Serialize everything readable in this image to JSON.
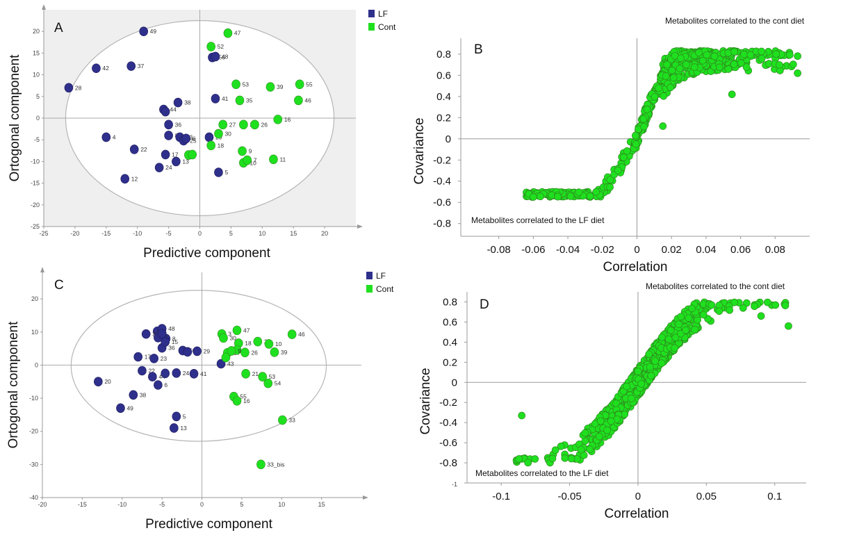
{
  "colors": {
    "lf": "#2f2f8c",
    "cont": "#1fe01f",
    "cont_stroke": "#2f8a1f",
    "lf_stroke": "#1c1c5a",
    "grid": "#c7c7c7",
    "plot_bg_a": "#efefef"
  },
  "chart_data": [
    {
      "panel": "A",
      "type": "scatter",
      "xlabel": "Predictive component",
      "ylabel": "Ortogonal component",
      "xlim": [
        -25,
        25
      ],
      "ylim": [
        -25,
        25
      ],
      "xticks": [
        -25,
        -20,
        -15,
        -10,
        -5,
        0,
        5,
        10,
        15,
        20
      ],
      "yticks": [
        20,
        15,
        10,
        5,
        0,
        -5,
        -10,
        -15,
        -20,
        -25
      ],
      "ellipse": {
        "cx": 0,
        "cy": 0,
        "rx": 21.5,
        "ry": 22.5
      },
      "legend": [
        {
          "name": "LF",
          "color": "#2f2f8c"
        },
        {
          "name": "Cont",
          "color": "#1fe01f"
        }
      ],
      "series": [
        {
          "name": "LF",
          "points": [
            {
              "label": "49",
              "x": -9,
              "y": 20
            },
            {
              "label": "42",
              "x": -16.6,
              "y": 11.5
            },
            {
              "label": "37",
              "x": -11,
              "y": 12
            },
            {
              "label": "28",
              "x": -21,
              "y": 7
            },
            {
              "label": "44",
              "x": -5.8,
              "y": 2
            },
            {
              "label": "",
              "x": -5.5,
              "y": 1.5
            },
            {
              "label": "38",
              "x": -3.5,
              "y": 3.6
            },
            {
              "label": "36",
              "x": -5,
              "y": -1.5
            },
            {
              "label": "4",
              "x": -15,
              "y": -4.4
            },
            {
              "label": "22",
              "x": -10.5,
              "y": -7.2
            },
            {
              "label": "8",
              "x": -5,
              "y": -4
            },
            {
              "label": "23",
              "x": -3.2,
              "y": -4.4
            },
            {
              "label": "25",
              "x": -2.6,
              "y": -5.2
            },
            {
              "label": "6",
              "x": -2.2,
              "y": -4.7
            },
            {
              "label": "17",
              "x": -5.5,
              "y": -8.4
            },
            {
              "label": "24",
              "x": -6.5,
              "y": -11.4
            },
            {
              "label": "13",
              "x": -3.8,
              "y": -10
            },
            {
              "label": "12",
              "x": -12,
              "y": -14
            },
            {
              "label": "41",
              "x": 2.5,
              "y": 4.5
            },
            {
              "label": "29",
              "x": 1.5,
              "y": -4.4
            },
            {
              "label": "5",
              "x": 3,
              "y": -12.5
            },
            {
              "label": "56",
              "x": 2,
              "y": 14
            },
            {
              "label": "48",
              "x": 2.5,
              "y": 14.2
            }
          ]
        },
        {
          "name": "Cont",
          "points": [
            {
              "label": "47",
              "x": 4.5,
              "y": 19.6
            },
            {
              "label": "52",
              "x": 1.8,
              "y": 16.5
            },
            {
              "label": "53",
              "x": 5.8,
              "y": 7.8
            },
            {
              "label": "35",
              "x": 6.4,
              "y": 4.1
            },
            {
              "label": "39",
              "x": 11.3,
              "y": 7.2
            },
            {
              "label": "55",
              "x": 16,
              "y": 7.8
            },
            {
              "label": "46",
              "x": 15.8,
              "y": 4.1
            },
            {
              "label": "27",
              "x": 3.7,
              "y": -1.5
            },
            {
              "label": "33",
              "x": 7,
              "y": -1.5
            },
            {
              "label": "26",
              "x": 8.8,
              "y": -1.5
            },
            {
              "label": "16",
              "x": 12.5,
              "y": -0.3
            },
            {
              "label": "30",
              "x": 3,
              "y": -3.6
            },
            {
              "label": "18",
              "x": 1.8,
              "y": -6.3
            },
            {
              "label": "9",
              "x": 6.8,
              "y": -7.6
            },
            {
              "label": "10",
              "x": 7,
              "y": -10.3
            },
            {
              "label": "7",
              "x": 7.6,
              "y": -9.7
            },
            {
              "label": "11",
              "x": 11.8,
              "y": -9.5
            },
            {
              "label": "",
              "x": -1.8,
              "y": -8.5
            },
            {
              "label": "",
              "x": -1.2,
              "y": -8.4
            }
          ]
        }
      ]
    },
    {
      "panel": "B",
      "type": "scatter",
      "xlabel": "Correlation",
      "ylabel": "Covariance",
      "xticks": [
        -0.08,
        -0.06,
        -0.04,
        -0.02,
        0,
        0.02,
        0.04,
        0.06,
        0.08
      ],
      "yticks": [
        0.8,
        0.6,
        0.4,
        0.2,
        0,
        -0.2,
        -0.4,
        -0.6,
        -0.8
      ],
      "annotation_top": "Metabolites correlated to the cont diet",
      "annotation_bottom": "Metabolites correlated to the LF diet",
      "series": [
        {
          "name": "",
          "trend": {
            "x_min": -0.064,
            "x_max": 0.093,
            "cov_max": 0.83,
            "cov_min": -0.55,
            "slope_pos": 55,
            "slope_neg": 30
          }
        }
      ]
    },
    {
      "panel": "C",
      "type": "scatter",
      "xlabel": "Predictive component",
      "ylabel": "Ortogonal component",
      "xlim": [
        -20,
        20
      ],
      "ylim": [
        -40,
        28
      ],
      "xticks": [
        -20,
        -15,
        -10,
        -5,
        0,
        5,
        10,
        15
      ],
      "yticks": [
        20,
        10,
        0,
        -10,
        -20,
        -30,
        -40
      ],
      "ellipse": {
        "cx": -0.4,
        "cy": -0.2,
        "rx": 16,
        "ry": 22.8
      },
      "legend": [
        {
          "name": "LF",
          "color": "#2f2f8c"
        },
        {
          "name": "Cont",
          "color": "#1fe01f"
        }
      ],
      "series": [
        {
          "name": "LF",
          "points": [
            {
              "label": "4",
              "x": -5.6,
              "y": 10.2
            },
            {
              "label": "48",
              "x": -5,
              "y": 11
            },
            {
              "label": "8",
              "x": -4.5,
              "y": 8
            },
            {
              "label": "28",
              "x": -7,
              "y": 9.4
            },
            {
              "label": "2",
              "x": -5.5,
              "y": 8.3
            },
            {
              "label": "",
              "x": -5,
              "y": 9.5
            },
            {
              "label": "36",
              "x": -5,
              "y": 5.2
            },
            {
              "label": "15",
              "x": -4.6,
              "y": 7
            },
            {
              "label": "56",
              "x": -2.4,
              "y": 4.4
            },
            {
              "label": "",
              "x": -1.8,
              "y": 4
            },
            {
              "label": "29",
              "x": -0.6,
              "y": 4.2
            },
            {
              "label": "17",
              "x": -8,
              "y": 2.5
            },
            {
              "label": "23",
              "x": -6,
              "y": 2
            },
            {
              "label": "22",
              "x": -7.5,
              "y": -1.7
            },
            {
              "label": "44",
              "x": -6.2,
              "y": -3.5
            },
            {
              "label": "",
              "x": -4.6,
              "y": -2.5
            },
            {
              "label": "24",
              "x": -3.2,
              "y": -2.4
            },
            {
              "label": "6",
              "x": -5.5,
              "y": -6
            },
            {
              "label": "41",
              "x": -1,
              "y": -2.6
            },
            {
              "label": "20",
              "x": -13,
              "y": -5
            },
            {
              "label": "38",
              "x": -8.6,
              "y": -9
            },
            {
              "label": "49",
              "x": -10.2,
              "y": -13
            },
            {
              "label": "5",
              "x": -3.2,
              "y": -15.5
            },
            {
              "label": "13",
              "x": -3.5,
              "y": -19
            },
            {
              "label": "43",
              "x": 2.4,
              "y": 0.4
            }
          ]
        },
        {
          "name": "Cont",
          "points": [
            {
              "label": "3",
              "x": 2.5,
              "y": 9.4
            },
            {
              "label": "30",
              "x": 2.7,
              "y": 8.2
            },
            {
              "label": "47",
              "x": 4.4,
              "y": 10.5
            },
            {
              "label": "18",
              "x": 4.6,
              "y": 6.6
            },
            {
              "label": "27",
              "x": 7,
              "y": 7.1
            },
            {
              "label": "10",
              "x": 8.4,
              "y": 6.4
            },
            {
              "label": "46",
              "x": 11.3,
              "y": 9.3
            },
            {
              "label": "39",
              "x": 9.1,
              "y": 3.9
            },
            {
              "label": "37",
              "x": 3.2,
              "y": 3.7
            },
            {
              "label": "",
              "x": 3,
              "y": 2.3
            },
            {
              "label": "7",
              "x": 4.4,
              "y": 4.6
            },
            {
              "label": "9",
              "x": 3.7,
              "y": 4.3
            },
            {
              "label": "26",
              "x": 5.4,
              "y": 3.8
            },
            {
              "label": "53",
              "x": 7.6,
              "y": -3.5
            },
            {
              "label": "54",
              "x": 8.3,
              "y": -5.5
            },
            {
              "label": "21",
              "x": 5.5,
              "y": -2.6
            },
            {
              "label": "55",
              "x": 4,
              "y": -9.5
            },
            {
              "label": "16",
              "x": 4.4,
              "y": -10.8
            },
            {
              "label": "33",
              "x": 10.1,
              "y": -16.6
            },
            {
              "label": "33_bis",
              "x": 7.4,
              "y": -30
            }
          ]
        }
      ]
    },
    {
      "panel": "D",
      "type": "scatter",
      "xlabel": "Correlation",
      "ylabel": "Covariance",
      "xticks": [
        -0.1,
        -0.05,
        0,
        0.05,
        0.1
      ],
      "xtick_labels": [
        "-0.1",
        "-0.05",
        "0",
        "0.05",
        "0.1"
      ],
      "yticks": [
        0.8,
        0.6,
        0.4,
        0.2,
        0,
        -0.2,
        -0.4,
        -0.6,
        -0.8,
        -1
      ],
      "annotation_top": "Metabolites correlated to the cont diet",
      "annotation_bottom": "Metabolites correlated to the LF diet",
      "series": [
        {
          "name": "",
          "trend": {
            "x_min": -0.09,
            "x_max": 0.11,
            "cov_max": 0.8,
            "cov_min": -0.8,
            "slope": 20
          }
        }
      ]
    }
  ]
}
